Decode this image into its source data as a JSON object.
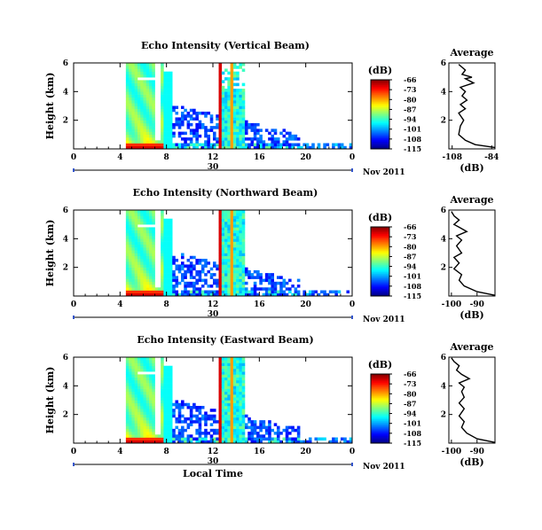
{
  "chart_data": [
    {
      "type": "heatmap",
      "title": "Echo Intensity (Vertical Beam)",
      "ylabel": "Height (km)",
      "y_ticks": [
        "6",
        "4",
        "2"
      ],
      "x_ticks": [
        "0",
        "4",
        "8",
        "12",
        "16",
        "20",
        "0"
      ],
      "xlim": [
        0,
        24
      ],
      "ylim": [
        0,
        6
      ],
      "date_ticks": [
        "30"
      ],
      "date_label": "Nov 2011",
      "colorbar": {
        "unit": "(dB)",
        "ticks": [
          "-66",
          "-73",
          "-80",
          "-87",
          "-94",
          "-101",
          "-108",
          "-115"
        ],
        "range": [
          -115,
          -66
        ]
      },
      "profile": {
        "title": "Average",
        "x_ticks": [
          "-108",
          "-84"
        ],
        "xlabel": "(dB)",
        "y_ticks": [
          "6",
          "4",
          "2"
        ],
        "xlim": [
          -110,
          -82
        ],
        "ylim": [
          0,
          6
        ],
        "points": [
          [
            -82,
            0.1
          ],
          [
            -94,
            0.3
          ],
          [
            -100,
            0.6
          ],
          [
            -104,
            1.0
          ],
          [
            -103,
            1.6
          ],
          [
            -101,
            2.0
          ],
          [
            -104,
            2.5
          ],
          [
            -100,
            2.8
          ],
          [
            -103,
            3.1
          ],
          [
            -99,
            3.4
          ],
          [
            -102,
            3.7
          ],
          [
            -100,
            4.0
          ],
          [
            -103,
            4.3
          ],
          [
            -95,
            4.6
          ],
          [
            -100,
            4.9
          ],
          [
            -96,
            5.0
          ],
          [
            -102,
            5.2
          ],
          [
            -100,
            5.5
          ],
          [
            -104,
            5.9
          ]
        ]
      }
    },
    {
      "type": "heatmap",
      "title": "Echo Intensity (Northward Beam)",
      "ylabel": "Height (km)",
      "y_ticks": [
        "6",
        "4",
        "2"
      ],
      "x_ticks": [
        "0",
        "4",
        "8",
        "12",
        "16",
        "20",
        "0"
      ],
      "xlim": [
        0,
        24
      ],
      "ylim": [
        0,
        6
      ],
      "date_ticks": [
        "30"
      ],
      "date_label": "Nov 2011",
      "colorbar": {
        "unit": "(dB)",
        "ticks": [
          "-66",
          "-73",
          "-80",
          "-87",
          "-94",
          "-101",
          "-108",
          "-115"
        ],
        "range": [
          -115,
          -66
        ]
      },
      "profile": {
        "title": "Average",
        "x_ticks": [
          "-100",
          "-90"
        ],
        "xlabel": "(dB)",
        "y_ticks": [
          "6",
          "4",
          "2"
        ],
        "xlim": [
          -101,
          -83
        ],
        "ylim": [
          0,
          6
        ],
        "points": [
          [
            -83,
            0.05
          ],
          [
            -90,
            0.3
          ],
          [
            -95,
            0.7
          ],
          [
            -97,
            1.1
          ],
          [
            -96,
            1.5
          ],
          [
            -99,
            1.9
          ],
          [
            -97,
            2.3
          ],
          [
            -99,
            2.7
          ],
          [
            -96,
            3.0
          ],
          [
            -98,
            3.5
          ],
          [
            -96,
            3.9
          ],
          [
            -98,
            4.2
          ],
          [
            -94,
            4.5
          ],
          [
            -97,
            4.8
          ],
          [
            -99,
            5.0
          ],
          [
            -97,
            5.3
          ],
          [
            -99,
            5.6
          ],
          [
            -100,
            5.9
          ]
        ]
      }
    },
    {
      "type": "heatmap",
      "title": "Echo Intensity (Eastward Beam)",
      "ylabel": "Height (km)",
      "y_ticks": [
        "6",
        "4",
        "2"
      ],
      "x_ticks": [
        "0",
        "4",
        "8",
        "12",
        "16",
        "20",
        "0"
      ],
      "xlim": [
        0,
        24
      ],
      "ylim": [
        0,
        6
      ],
      "date_ticks": [
        "30"
      ],
      "date_label": "Nov 2011",
      "xlabel": "Local Time",
      "colorbar": {
        "unit": "(dB)",
        "ticks": [
          "-66",
          "-73",
          "-80",
          "-87",
          "-94",
          "-101",
          "-108",
          "-115"
        ],
        "range": [
          -115,
          -66
        ]
      },
      "profile": {
        "title": "Average",
        "x_ticks": [
          "-100",
          "-90"
        ],
        "xlabel": "(dB)",
        "y_ticks": [
          "6",
          "4",
          "2"
        ],
        "xlim": [
          -101,
          -83
        ],
        "ylim": [
          0,
          6
        ],
        "points": [
          [
            -83,
            0.05
          ],
          [
            -90,
            0.3
          ],
          [
            -94,
            0.7
          ],
          [
            -96,
            1.1
          ],
          [
            -95,
            1.5
          ],
          [
            -97,
            1.9
          ],
          [
            -95,
            2.4
          ],
          [
            -97,
            2.8
          ],
          [
            -95,
            3.2
          ],
          [
            -96,
            3.6
          ],
          [
            -95,
            3.9
          ],
          [
            -97,
            4.2
          ],
          [
            -93,
            4.5
          ],
          [
            -96,
            4.8
          ],
          [
            -98,
            5.1
          ],
          [
            -97,
            5.4
          ],
          [
            -99,
            5.7
          ],
          [
            -100,
            5.95
          ]
        ]
      }
    }
  ]
}
